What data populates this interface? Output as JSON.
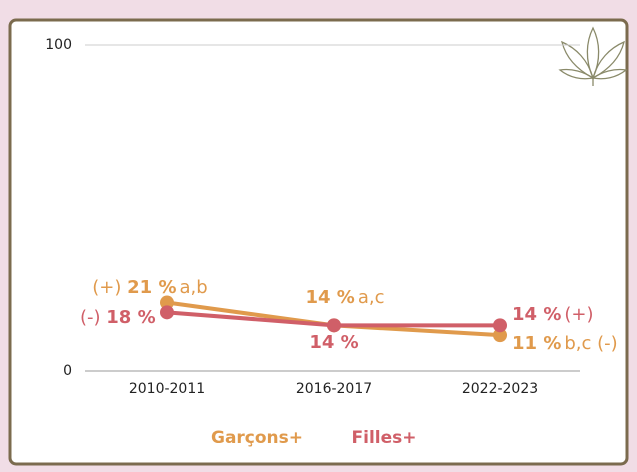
{
  "chart_data": {
    "type": "line",
    "categories": [
      "2010-2011",
      "2016-2017",
      "2022-2023"
    ],
    "series": [
      {
        "name": "Garçons+",
        "color": "#e09a4c",
        "values": [
          21,
          14,
          11
        ],
        "value_labels": [
          "21 %",
          "14 %",
          "11 %"
        ],
        "prefix": [
          "(+)",
          null,
          null
        ],
        "suffix": [
          "a,b",
          "a,c",
          "b,c (-)"
        ]
      },
      {
        "name": "Filles+",
        "color": "#d05f68",
        "values": [
          18,
          14,
          14
        ],
        "value_labels": [
          "18 %",
          "14 %",
          "14 %"
        ],
        "prefix": [
          "(-)",
          null,
          null
        ],
        "suffix": [
          null,
          null,
          "(+)"
        ]
      }
    ],
    "ylim": [
      0,
      100
    ],
    "yticks": [
      0,
      100
    ],
    "grid": true
  }
}
